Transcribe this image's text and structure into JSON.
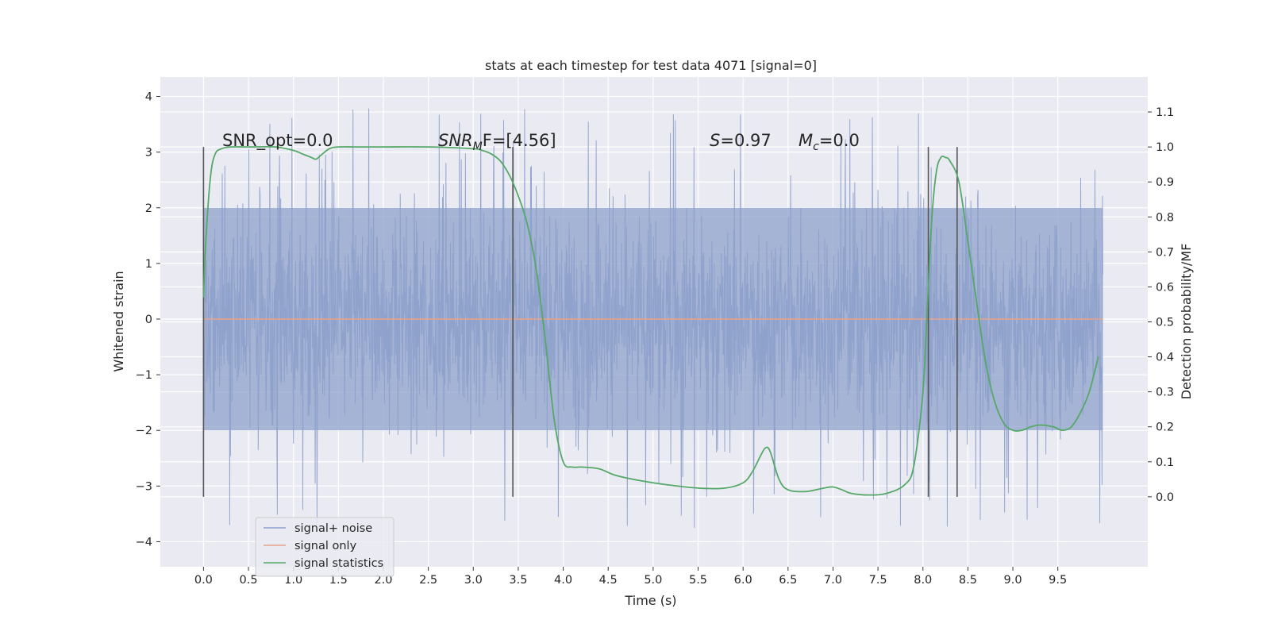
{
  "chart_data": {
    "type": "line",
    "title": "stats at each timestep for test data 4071 [signal=0]",
    "xlabel": "Time (s)",
    "ylabel_left": "Whitened strain",
    "ylabel_right": "Detection probability/MF",
    "xlim": [
      -0.48,
      10.5
    ],
    "ylim_left": [
      -4.45,
      4.35
    ],
    "ylim_right": [
      -0.2,
      1.2
    ],
    "x_ticks": [
      "0.0",
      "0.5",
      "1.0",
      "1.5",
      "2.0",
      "2.5",
      "3.0",
      "3.5",
      "4.0",
      "4.5",
      "5.0",
      "5.5",
      "6.0",
      "6.5",
      "7.0",
      "7.5",
      "8.0",
      "8.5",
      "9.0",
      "9.5"
    ],
    "y_ticks_left": [
      "−4",
      "−3",
      "−2",
      "−1",
      "0",
      "1",
      "2",
      "3",
      "4"
    ],
    "y_ticks_right": [
      "0.0",
      "0.1",
      "0.2",
      "0.3",
      "0.4",
      "0.5",
      "0.6",
      "0.7",
      "0.8",
      "0.9",
      "1.0",
      "1.1"
    ],
    "grid": true,
    "legend": {
      "placement": "lower-left",
      "entries": [
        {
          "label": "signal+ noise",
          "color": "#8da0cb"
        },
        {
          "label": "signal only",
          "color": "#e8a38a"
        },
        {
          "label": "signal statistics",
          "color": "#55a868"
        }
      ]
    },
    "annotations": {
      "snr_opt": "SNR_opt=0.0",
      "snr_mf_base": "SNR",
      "snr_mf_sub": "M",
      "snr_mf_rest": "F=[4.56]",
      "s_label": "S",
      "s_value": "=0.97",
      "mc_base": "M",
      "mc_sub": "c",
      "mc_value": "=0.0"
    },
    "vertical_lines_x": [
      0.0,
      3.44,
      8.06,
      8.38
    ],
    "series": [
      {
        "name": "signal+ noise",
        "description": "noise trace, range approx -4 to 4",
        "x_range": [
          0.0,
          10.0
        ],
        "core_band": [
          -2.0,
          2.0
        ],
        "peak_max": 3.95,
        "peak_min": -4.05
      },
      {
        "name": "signal only",
        "x": [
          0.0,
          10.0
        ],
        "y": [
          0.0,
          0.0
        ]
      },
      {
        "name": "signal statistics",
        "axis": "right",
        "x": [
          0.0,
          0.03,
          0.08,
          0.13,
          0.2,
          0.3,
          0.5,
          0.8,
          1.0,
          1.1,
          1.2,
          1.25,
          1.3,
          1.4,
          1.5,
          1.7,
          2.0,
          2.5,
          3.0,
          3.1,
          3.2,
          3.3,
          3.4,
          3.5,
          3.6,
          3.7,
          3.8,
          3.9,
          4.0,
          4.1,
          4.2,
          4.4,
          4.6,
          5.0,
          5.5,
          5.8,
          6.0,
          6.1,
          6.2,
          6.25,
          6.3,
          6.4,
          6.5,
          6.7,
          6.9,
          7.0,
          7.1,
          7.2,
          7.4,
          7.6,
          7.8,
          7.9,
          8.0,
          8.05,
          8.1,
          8.15,
          8.2,
          8.25,
          8.3,
          8.4,
          8.5,
          8.6,
          8.7,
          8.8,
          8.9,
          9.0,
          9.1,
          9.2,
          9.3,
          9.45,
          9.55,
          9.65,
          9.75,
          9.85,
          9.95
        ],
        "y": [
          0.57,
          0.75,
          0.92,
          0.98,
          0.995,
          1.0,
          1.0,
          1.0,
          0.99,
          0.98,
          0.97,
          0.965,
          0.975,
          0.995,
          1.0,
          1.0,
          1.0,
          1.0,
          0.995,
          0.99,
          0.98,
          0.96,
          0.92,
          0.86,
          0.78,
          0.65,
          0.45,
          0.22,
          0.1,
          0.085,
          0.085,
          0.08,
          0.06,
          0.04,
          0.025,
          0.025,
          0.04,
          0.07,
          0.12,
          0.14,
          0.13,
          0.05,
          0.02,
          0.015,
          0.025,
          0.028,
          0.02,
          0.01,
          0.005,
          0.01,
          0.035,
          0.09,
          0.3,
          0.55,
          0.8,
          0.93,
          0.97,
          0.97,
          0.96,
          0.9,
          0.73,
          0.55,
          0.38,
          0.27,
          0.21,
          0.19,
          0.19,
          0.2,
          0.205,
          0.2,
          0.19,
          0.2,
          0.24,
          0.3,
          0.4
        ]
      }
    ]
  }
}
